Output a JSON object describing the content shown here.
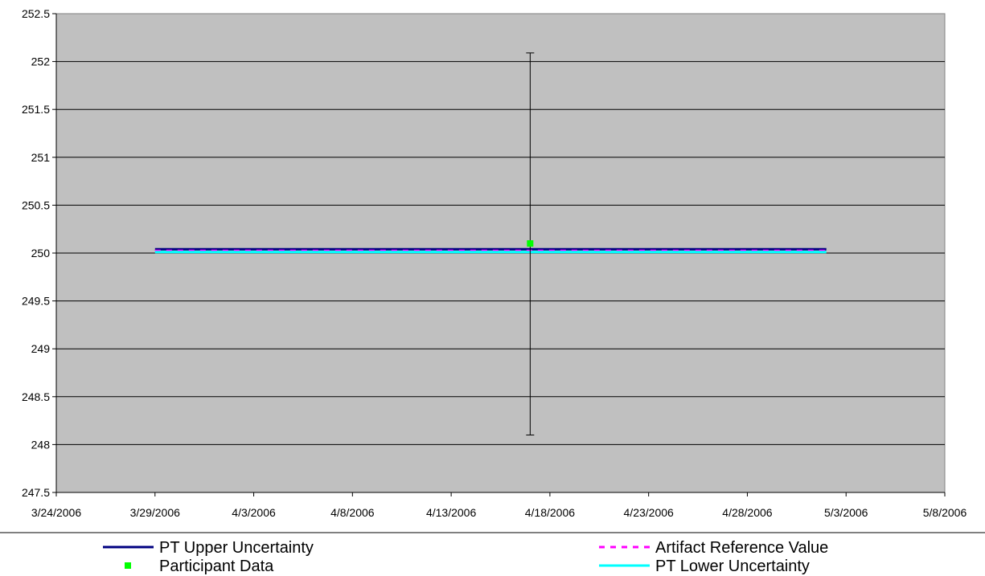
{
  "chart_data": {
    "type": "line",
    "title": "",
    "xlabel": "",
    "ylabel": "",
    "x_ticks": [
      "3/24/2006",
      "3/29/2006",
      "4/3/2006",
      "4/8/2006",
      "4/13/2006",
      "4/18/2006",
      "4/23/2006",
      "4/28/2006",
      "5/3/2006",
      "5/8/2006"
    ],
    "xlim": [
      "2006-03-24",
      "2006-05-08"
    ],
    "y_ticks": [
      247.5,
      248,
      248.5,
      249,
      249.5,
      250,
      250.5,
      251,
      251.5,
      252,
      252.5
    ],
    "ylim": [
      247.5,
      252.5
    ],
    "grid": "horizontal",
    "plot_background": "#C0C0C0",
    "legend_position": "bottom",
    "series": [
      {
        "name": "PT Upper Uncertainty",
        "kind": "line",
        "color": "#000080",
        "points": [
          {
            "x": "2006-03-29",
            "y": 250.04
          },
          {
            "x": "2006-05-02",
            "y": 250.04
          }
        ]
      },
      {
        "name": "Artifact Reference Value",
        "kind": "dashed-line",
        "color": "#FF00FF",
        "points": [
          {
            "x": "2006-03-29",
            "y": 250.025
          },
          {
            "x": "2006-05-02",
            "y": 250.025
          }
        ]
      },
      {
        "name": "PT Lower Uncertainty",
        "kind": "line",
        "color": "#00FFFF",
        "points": [
          {
            "x": "2006-03-29",
            "y": 250.01
          },
          {
            "x": "2006-05-02",
            "y": 250.01
          }
        ]
      },
      {
        "name": "Participant Data",
        "kind": "marker",
        "color": "#00FF00",
        "points": [
          {
            "x": "2006-04-17",
            "y": 250.1,
            "error_low": 248.1,
            "error_high": 252.09
          }
        ]
      }
    ]
  }
}
